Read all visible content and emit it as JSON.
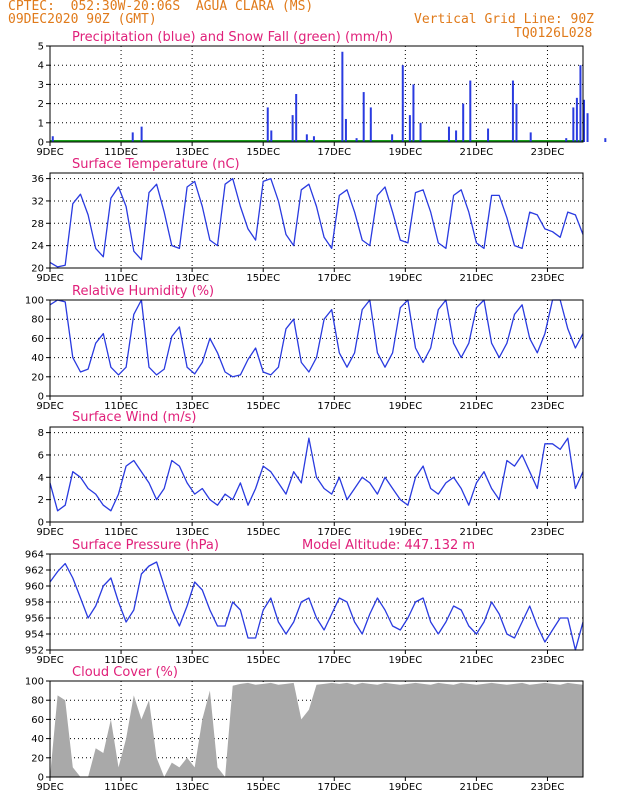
{
  "header": {
    "line1": "CPTEC:  052:30W-20:06S  AGUA CLARA (MS)",
    "line2": "09DEC2020 90Z (GMT)",
    "grid_note": "Vertical Grid Line: 90Z",
    "code": "TQ0126L028"
  },
  "colors": {
    "header": "#e07a1a",
    "title": "#e0207a",
    "line": "#2a3be0",
    "snow": "#1aa01a",
    "cloud": "#a9a9a9",
    "frame": "#000000"
  },
  "x_labels": [
    "9DEC",
    "11DEC",
    "13DEC",
    "15DEC",
    "17DEC",
    "19DEC",
    "21DEC",
    "23DEC"
  ],
  "chart_data": [
    {
      "type": "bar",
      "title": "Precipitation (blue) and Snow Fall (green) (mm/h)",
      "ylim": [
        0,
        5
      ],
      "yticks": [
        0,
        1,
        2,
        3,
        4,
        5
      ],
      "series": [
        {
          "name": "Precipitation",
          "points": [
            [
              0.05,
              0.3
            ],
            [
              2.3,
              0.5
            ],
            [
              2.55,
              0.8
            ],
            [
              6.1,
              1.8
            ],
            [
              6.2,
              0.6
            ],
            [
              6.8,
              1.4
            ],
            [
              6.9,
              2.5
            ],
            [
              7.2,
              0.4
            ],
            [
              7.4,
              0.3
            ],
            [
              8.2,
              4.7
            ],
            [
              8.3,
              1.2
            ],
            [
              8.6,
              0.2
            ],
            [
              8.8,
              2.6
            ],
            [
              9.0,
              1.8
            ],
            [
              9.6,
              0.4
            ],
            [
              9.9,
              4.0
            ],
            [
              10.1,
              1.4
            ],
            [
              10.2,
              3.0
            ],
            [
              10.4,
              1.0
            ],
            [
              11.2,
              0.8
            ],
            [
              11.4,
              0.6
            ],
            [
              11.6,
              2.0
            ],
            [
              11.8,
              3.2
            ],
            [
              12.3,
              0.7
            ],
            [
              13.0,
              3.2
            ],
            [
              13.1,
              2.0
            ],
            [
              13.5,
              0.5
            ],
            [
              14.5,
              0.2
            ],
            [
              14.7,
              1.8
            ],
            [
              14.8,
              2.3
            ],
            [
              14.9,
              4.0
            ],
            [
              15.0,
              2.2
            ],
            [
              15.1,
              1.5
            ],
            [
              15.6,
              0.2
            ],
            [
              16.0,
              3.6
            ],
            [
              16.1,
              1.4
            ]
          ]
        },
        {
          "name": "Snow Fall",
          "points": []
        }
      ]
    },
    {
      "type": "line",
      "title": "Surface Temperature (nC)",
      "ylim": [
        20,
        37
      ],
      "yticks": [
        20,
        24,
        28,
        32,
        36
      ],
      "series": [
        {
          "name": "Temperature",
          "values": [
            21,
            20.2,
            20.5,
            31.5,
            33.2,
            29.5,
            23.5,
            22,
            32.5,
            34.5,
            31,
            23,
            21.5,
            33.5,
            35,
            30,
            24,
            23.5,
            34.5,
            35.5,
            31,
            25,
            24,
            35,
            36,
            31,
            27,
            25,
            35.5,
            36,
            32,
            26,
            24,
            34,
            35,
            31,
            25.5,
            23.5,
            33,
            34,
            30,
            25,
            24,
            33,
            34.5,
            30,
            25,
            24.5,
            33.5,
            34,
            30,
            24.5,
            23.5,
            33,
            34,
            30,
            24.5,
            23.5,
            33,
            33,
            29,
            24,
            23.5,
            30,
            29.5,
            27,
            26.5,
            25.5,
            30,
            29.5,
            26
          ]
        }
      ]
    },
    {
      "type": "line",
      "title": "Relative Humidity (%)",
      "ylim": [
        0,
        100
      ],
      "yticks": [
        0,
        20,
        40,
        60,
        80,
        100
      ],
      "series": [
        {
          "name": "Humidity",
          "values": [
            95,
            100,
            98,
            40,
            25,
            28,
            55,
            65,
            30,
            22,
            30,
            85,
            100,
            30,
            22,
            28,
            62,
            72,
            30,
            23,
            35,
            60,
            45,
            25,
            20,
            22,
            38,
            50,
            25,
            22,
            30,
            70,
            80,
            35,
            25,
            40,
            80,
            90,
            45,
            30,
            45,
            90,
            100,
            45,
            30,
            45,
            92,
            100,
            50,
            35,
            50,
            90,
            100,
            55,
            40,
            55,
            92,
            100,
            55,
            40,
            55,
            85,
            95,
            60,
            45,
            65,
            100,
            100,
            70,
            50,
            65
          ]
        }
      ]
    },
    {
      "type": "line",
      "title": "Surface Wind (m/s)",
      "ylim": [
        0,
        8.5
      ],
      "yticks": [
        0,
        2,
        4,
        6,
        8
      ],
      "series": [
        {
          "name": "Wind speed",
          "values": [
            3.5,
            1,
            1.5,
            4.5,
            4,
            3,
            2.5,
            1.5,
            1,
            2.5,
            5,
            5.5,
            4.5,
            3.5,
            2,
            3,
            5.5,
            5,
            3.5,
            2.5,
            3,
            2,
            1.5,
            2.5,
            2,
            3.5,
            1.5,
            3,
            5,
            4.5,
            3.5,
            2.5,
            4.5,
            3.5,
            7.5,
            4,
            3,
            2.5,
            4,
            2,
            3,
            4,
            3.5,
            2.5,
            4,
            3,
            2,
            1.5,
            4,
            5,
            3,
            2.5,
            3.5,
            4,
            3,
            1.5,
            3.5,
            4.5,
            3,
            2,
            5.5,
            5,
            6,
            4.5,
            3,
            7,
            7,
            6.5,
            7.5,
            3,
            4.5
          ]
        }
      ]
    },
    {
      "type": "line",
      "title": "Surface Pressure (hPa)",
      "subtitle": "Model Altitude: 447.132 m",
      "ylim": [
        952,
        964
      ],
      "yticks": [
        952,
        954,
        956,
        958,
        960,
        962,
        964
      ],
      "series": [
        {
          "name": "Pressure",
          "values": [
            960.5,
            961.8,
            962.8,
            961,
            958.5,
            956,
            957.5,
            960,
            961,
            958,
            955.5,
            957,
            961.5,
            962.5,
            963,
            960,
            957,
            955,
            957.5,
            960.5,
            959.5,
            957,
            955,
            955,
            958,
            957,
            953.5,
            953.5,
            957,
            958.5,
            955.5,
            954,
            955.5,
            958,
            958.5,
            956,
            954.5,
            956.5,
            958.5,
            958,
            955.5,
            954,
            956.5,
            958.5,
            957,
            955,
            954.5,
            956,
            958,
            958.5,
            955.5,
            954,
            955.5,
            957.5,
            957,
            955,
            954,
            955.5,
            958,
            956.5,
            954,
            953.5,
            955.5,
            957.5,
            955,
            953,
            954.5,
            956,
            956,
            952,
            955.5
          ]
        }
      ]
    },
    {
      "type": "area",
      "title": "Cloud Cover (%)",
      "ylim": [
        0,
        100
      ],
      "yticks": [
        0,
        20,
        40,
        60,
        80,
        100
      ],
      "series": [
        {
          "name": "Cloud cover",
          "values": [
            0,
            85,
            80,
            10,
            0,
            0,
            30,
            25,
            60,
            10,
            40,
            85,
            60,
            80,
            20,
            0,
            15,
            10,
            20,
            10,
            60,
            90,
            10,
            0,
            95,
            97,
            98,
            96,
            97,
            98,
            96,
            97,
            98,
            60,
            70,
            96,
            97,
            98,
            97,
            98,
            96,
            98,
            97,
            96,
            98,
            97,
            96,
            97,
            98,
            97,
            96,
            98,
            97,
            96,
            98,
            97,
            96,
            97,
            98,
            97,
            96,
            97,
            98,
            96,
            97,
            98,
            97,
            96,
            98,
            97,
            96
          ]
        }
      ]
    }
  ]
}
